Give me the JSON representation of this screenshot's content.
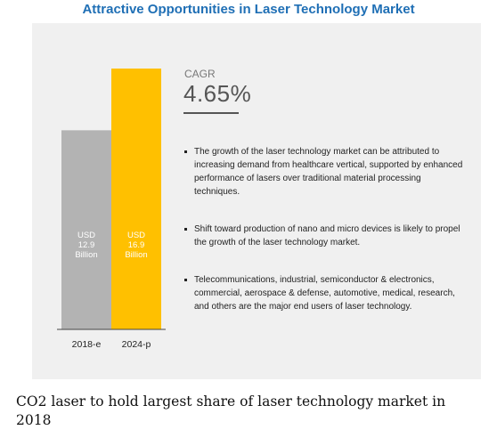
{
  "title": "Attractive Opportunities in Laser Technology Market",
  "cagr": {
    "label": "CAGR",
    "value": "4.65%"
  },
  "bullets": [
    "The growth of the laser technology market can be attributed to increasing demand from healthcare vertical, supported by enhanced performance of lasers over traditional material processing techniques.",
    "Shift toward production of nano and micro devices is likely to propel the growth of the laser technology market.",
    "Telecommunications, industrial, semiconductor & electronics, commercial, aerospace & defense, automotive, medical, research, and others are the major end users of laser technology."
  ],
  "caption": "CO2 laser to hold largest share of laser technology market in 2018",
  "colors": {
    "title": "#1f6fb5",
    "bar_2018": "#b3b3b3",
    "bar_2024": "#ffc000",
    "panel": "#f0f0f0"
  },
  "chart_data": {
    "type": "bar",
    "categories": [
      "2018-e",
      "2024-p"
    ],
    "values": [
      12.9,
      16.9
    ],
    "bar_labels": [
      [
        "USD",
        "12.9",
        "Billion"
      ],
      [
        "USD",
        "16.9",
        "Billion"
      ]
    ],
    "ylim": [
      0,
      16.9
    ],
    "colors": [
      "#b3b3b3",
      "#ffc000"
    ]
  }
}
